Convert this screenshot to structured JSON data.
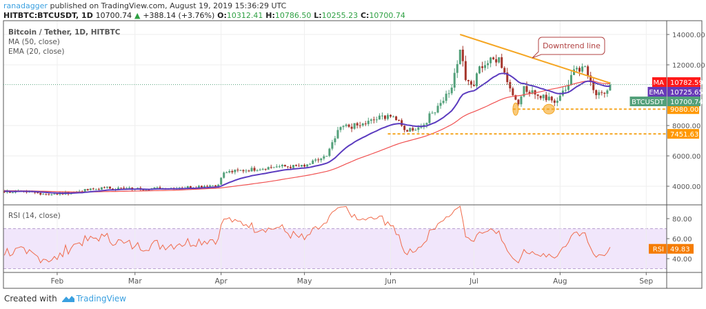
{
  "header": {
    "user": "ranadagger",
    "published": " published on TradingView.com, August 19, 2019 15:36:29 UTC",
    "symbol": "HITBTC:BTCUSDT, 1D",
    "last": "10700.74",
    "change": "+388.14 (+3.76%)",
    "o_label": "O:",
    "o": "10312.41",
    "h_label": "H:",
    "h": "10786.50",
    "l_label": "L:",
    "l": "10255.23",
    "c_label": "C:",
    "c": "10700.74"
  },
  "legend": {
    "title": "Bitcoin / Tether, 1D, HITBTC",
    "ma": "MA (50, close)",
    "ema": "EMA (20, close)",
    "rsi": "RSI (14, close)"
  },
  "colors": {
    "up": "#53a07a",
    "down": "#a5352b",
    "ma": "#f05050",
    "ema": "#5b3bbf",
    "trend": "#f5a623",
    "rsi": "#f06a4a",
    "rsi_band": "#f1e6fb"
  },
  "annotation": {
    "label": "Downtrend line"
  },
  "footer": {
    "created": "Created with",
    "brand": "TradingView"
  },
  "chart_data": {
    "type": "candlestick",
    "price_ticks": [
      4000,
      6000,
      8000,
      12000,
      14000
    ],
    "price_tick_labels": [
      "4000.00",
      "6000.00",
      "8000.00",
      "12000.00",
      "14000.00"
    ],
    "rsi_ticks": [
      40,
      60,
      80
    ],
    "rsi_tick_labels": [
      "40.00",
      "60.00",
      "80.00"
    ],
    "rsi_band": [
      30,
      70
    ],
    "months": [
      {
        "label": "Feb",
        "doy": 31
      },
      {
        "label": "Mar",
        "doy": 59
      },
      {
        "label": "Apr",
        "doy": 90
      },
      {
        "label": "May",
        "doy": 120
      },
      {
        "label": "Jun",
        "doy": 151
      },
      {
        "label": "Jul",
        "doy": 181
      },
      {
        "label": "Aug",
        "doy": 212
      },
      {
        "label": "Sep",
        "doy": 243
      }
    ],
    "close_keypoints": [
      [
        -60,
        3800
      ],
      [
        0,
        3700
      ],
      [
        11,
        3650
      ],
      [
        20,
        3600
      ],
      [
        31,
        3450
      ],
      [
        38,
        3650
      ],
      [
        48,
        3900
      ],
      [
        55,
        3850
      ],
      [
        59,
        3820
      ],
      [
        75,
        3900
      ],
      [
        89,
        4100
      ],
      [
        91,
        4900
      ],
      [
        110,
        5300
      ],
      [
        120,
        5300
      ],
      [
        128,
        6000
      ],
      [
        133,
        7900
      ],
      [
        140,
        8000
      ],
      [
        150,
        8700
      ],
      [
        152,
        8600
      ],
      [
        156,
        7700
      ],
      [
        162,
        7900
      ],
      [
        168,
        9300
      ],
      [
        173,
        10500
      ],
      [
        176,
        13000
      ],
      [
        178,
        11000
      ],
      [
        181,
        10600
      ],
      [
        183,
        11900
      ],
      [
        190,
        12500
      ],
      [
        195,
        10000
      ],
      [
        197,
        9400
      ],
      [
        199,
        10600
      ],
      [
        205,
        9800
      ],
      [
        208,
        9900
      ],
      [
        210,
        9500
      ],
      [
        213,
        10300
      ],
      [
        218,
        11800
      ],
      [
        221,
        11900
      ],
      [
        225,
        10000
      ],
      [
        229,
        10312
      ],
      [
        230,
        10700
      ]
    ],
    "levels": [
      {
        "value": 9080,
        "label": "9080.00"
      },
      {
        "value": 7451.63,
        "label": "7451.63"
      }
    ],
    "trendline": {
      "from": [
        176,
        14000
      ],
      "to": [
        230,
        10800
      ]
    },
    "support_marks": [
      {
        "doy": 196,
        "value": 9080
      },
      {
        "doy": 208,
        "value": 9080
      }
    ],
    "badges": [
      {
        "name": "MA",
        "value": "10782.59",
        "price": 10782.59,
        "color": "#ff1a1a"
      },
      {
        "name": "EMA",
        "value": "10725.65",
        "price": 10725.65,
        "color": "#673ab7"
      },
      {
        "name": "BTCUSDT",
        "value": "10700.74",
        "price": 10700.74,
        "color": "#53a07a"
      }
    ],
    "rsi_badge": {
      "name": "RSI",
      "value": "49.83",
      "rsi": 49.83,
      "color": "#f57c00"
    }
  }
}
